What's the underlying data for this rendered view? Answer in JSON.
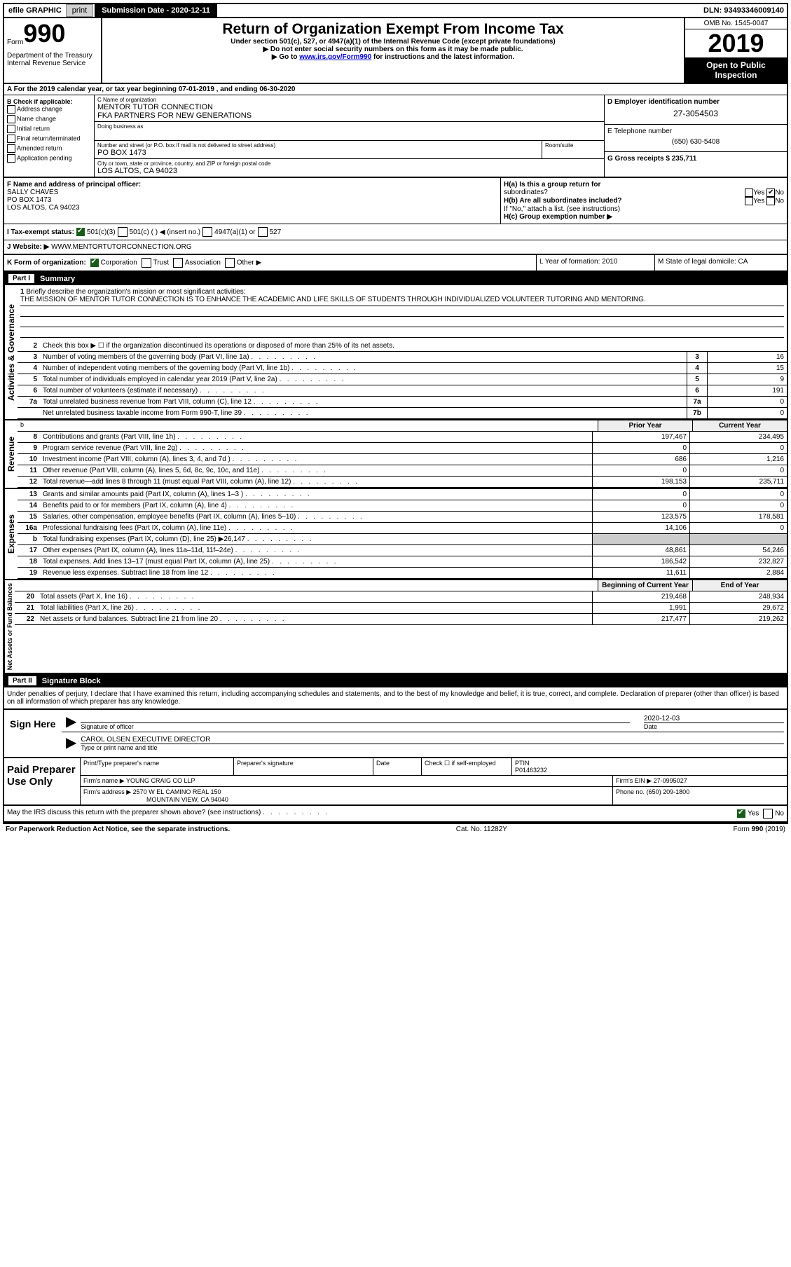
{
  "topbar": {
    "efile_label": "efile GRAPHIC",
    "print_btn": "print",
    "sub_date_label": "Submission Date - 2020-12-11",
    "dln": "DLN: 93493346009140"
  },
  "header": {
    "form_word": "Form",
    "form_num": "990",
    "dept": "Department of the Treasury\nInternal Revenue Service",
    "main_title": "Return of Organization Exempt From Income Tax",
    "sub1": "Under section 501(c), 527, or 4947(a)(1) of the Internal Revenue Code (except private foundations)",
    "sub2": "▶ Do not enter social security numbers on this form as it may be made public.",
    "sub3_pre": "▶ Go to ",
    "sub3_link": "www.irs.gov/Form990",
    "sub3_post": " for instructions and the latest information.",
    "omb": "OMB No. 1545-0047",
    "year": "2019",
    "open_pub": "Open to Public Inspection"
  },
  "row_a": "A For the 2019 calendar year, or tax year beginning 07-01-2019    , and ending 06-30-2020",
  "col_b": {
    "header": "B Check if applicable:",
    "items": [
      "Address change",
      "Name change",
      "Initial return",
      "Final return/terminated",
      "Amended return",
      "Application pending"
    ]
  },
  "col_c": {
    "name_label": "C Name of organization",
    "name": "MENTOR TUTOR CONNECTION",
    "fka": "FKA PARTNERS FOR NEW GENERATIONS",
    "dba_label": "Doing business as",
    "addr_label": "Number and street (or P.O. box if mail is not delivered to street address)",
    "addr": "PO BOX 1473",
    "suite_label": "Room/suite",
    "city_label": "City or town, state or province, country, and ZIP or foreign postal code",
    "city": "LOS ALTOS, CA  94023"
  },
  "col_d": {
    "ein_label": "D Employer identification number",
    "ein": "27-3054503",
    "phone_label": "E Telephone number",
    "phone": "(650) 630-5408",
    "gross_label": "G Gross receipts $ 235,711"
  },
  "f_section": {
    "f_label": "F  Name and address of principal officer:",
    "officer": "SALLY CHAVES\nPO BOX 1473\nLOS ALTOS, CA  94023",
    "ha": "H(a)  Is this a group return for",
    "ha2": "subordinates?",
    "hb": "H(b)  Are all subordinates included?",
    "hb_note": "If \"No,\" attach a list. (see instructions)",
    "hc": "H(c)  Group exemption number ▶",
    "yes": "Yes",
    "no": "No"
  },
  "tax_status": {
    "label": "I    Tax-exempt status:",
    "s1": "501(c)(3)",
    "s2": "501(c) (  ) ◀ (insert no.)",
    "s3": "4947(a)(1) or",
    "s4": "527"
  },
  "website": {
    "label": "J   Website: ▶",
    "value": "WWW.MENTORTUTORCONNECTION.ORG"
  },
  "klm": {
    "k": "K Form of organization:",
    "k_corp": "Corporation",
    "k_trust": "Trust",
    "k_assoc": "Association",
    "k_other": "Other ▶",
    "l": "L Year of formation: 2010",
    "m": "M State of legal domicile: CA"
  },
  "part1": {
    "label": "Part I",
    "title": "Summary"
  },
  "governance": {
    "vert": "Activities & Governance",
    "line1": "Briefly describe the organization's mission or most significant activities:",
    "mission": "THE MISSION OF MENTOR TUTOR CONNECTION IS TO ENHANCE THE ACADEMIC AND LIFE SKILLS OF STUDENTS THROUGH INDIVIDUALIZED VOLUNTEER TUTORING AND MENTORING.",
    "line2": "Check this box ▶ ☐  if the organization discontinued its operations or disposed of more than 25% of its net assets.",
    "lines": [
      {
        "n": "3",
        "t": "Number of voting members of the governing body (Part VI, line 1a)",
        "box": "3",
        "v": "16"
      },
      {
        "n": "4",
        "t": "Number of independent voting members of the governing body (Part VI, line 1b)",
        "box": "4",
        "v": "15"
      },
      {
        "n": "5",
        "t": "Total number of individuals employed in calendar year 2019 (Part V, line 2a)",
        "box": "5",
        "v": "9"
      },
      {
        "n": "6",
        "t": "Total number of volunteers (estimate if necessary)",
        "box": "6",
        "v": "191"
      },
      {
        "n": "7a",
        "t": "Total unrelated business revenue from Part VIII, column (C), line 12",
        "box": "7a",
        "v": "0"
      },
      {
        "n": "",
        "t": "Net unrelated business taxable income from Form 990-T, line 39",
        "box": "7b",
        "v": "0"
      }
    ]
  },
  "revenue": {
    "vert": "Revenue",
    "header_prior": "Prior Year",
    "header_current": "Current Year",
    "lines": [
      {
        "n": "8",
        "t": "Contributions and grants (Part VIII, line 1h)",
        "p": "197,467",
        "c": "234,495"
      },
      {
        "n": "9",
        "t": "Program service revenue (Part VIII, line 2g)",
        "p": "0",
        "c": "0"
      },
      {
        "n": "10",
        "t": "Investment income (Part VIII, column (A), lines 3, 4, and 7d )",
        "p": "686",
        "c": "1,216"
      },
      {
        "n": "11",
        "t": "Other revenue (Part VIII, column (A), lines 5, 6d, 8c, 9c, 10c, and 11e)",
        "p": "0",
        "c": "0"
      },
      {
        "n": "12",
        "t": "Total revenue—add lines 8 through 11 (must equal Part VIII, column (A), line 12)",
        "p": "198,153",
        "c": "235,711"
      }
    ]
  },
  "expenses": {
    "vert": "Expenses",
    "lines": [
      {
        "n": "13",
        "t": "Grants and similar amounts paid (Part IX, column (A), lines 1–3 )",
        "p": "0",
        "c": "0"
      },
      {
        "n": "14",
        "t": "Benefits paid to or for members (Part IX, column (A), line 4)",
        "p": "0",
        "c": "0"
      },
      {
        "n": "15",
        "t": "Salaries, other compensation, employee benefits (Part IX, column (A), lines 5–10)",
        "p": "123,575",
        "c": "178,581"
      },
      {
        "n": "16a",
        "t": "Professional fundraising fees (Part IX, column (A), line 11e)",
        "p": "14,106",
        "c": "0"
      },
      {
        "n": "b",
        "t": "Total fundraising expenses (Part IX, column (D), line 25) ▶26,147",
        "p": "shaded",
        "c": "shaded"
      },
      {
        "n": "17",
        "t": "Other expenses (Part IX, column (A), lines 11a–11d, 11f–24e)",
        "p": "48,861",
        "c": "54,246"
      },
      {
        "n": "18",
        "t": "Total expenses. Add lines 13–17 (must equal Part IX, column (A), line 25)",
        "p": "186,542",
        "c": "232,827"
      },
      {
        "n": "19",
        "t": "Revenue less expenses. Subtract line 18 from line 12",
        "p": "11,611",
        "c": "2,884"
      }
    ]
  },
  "netassets": {
    "vert": "Net Assets or Fund Balances",
    "header_begin": "Beginning of Current Year",
    "header_end": "End of Year",
    "lines": [
      {
        "n": "20",
        "t": "Total assets (Part X, line 16)",
        "p": "219,468",
        "c": "248,934"
      },
      {
        "n": "21",
        "t": "Total liabilities (Part X, line 26)",
        "p": "1,991",
        "c": "29,672"
      },
      {
        "n": "22",
        "t": "Net assets or fund balances. Subtract line 21 from line 20",
        "p": "217,477",
        "c": "219,262"
      }
    ]
  },
  "part2": {
    "label": "Part II",
    "title": "Signature Block"
  },
  "sig": {
    "penalty": "Under penalties of perjury, I declare that I have examined this return, including accompanying schedules and statements, and to the best of my knowledge and belief, it is true, correct, and complete. Declaration of preparer (other than officer) is based on all information of which preparer has any knowledge.",
    "sign_here": "Sign Here",
    "sig_officer_label": "Signature of officer",
    "date_label": "Date",
    "date": "2020-12-03",
    "name_title": "CAROL OLSEN  EXECUTIVE DIRECTOR",
    "name_title_label": "Type or print name and title"
  },
  "preparer": {
    "label": "Paid Preparer Use Only",
    "print_name_label": "Print/Type preparer's name",
    "sig_label": "Preparer's signature",
    "date_label": "Date",
    "check_label": "Check ☐ if self-employed",
    "ptin_label": "PTIN",
    "ptin": "P01463232",
    "firm_name_label": "Firm's name     ▶",
    "firm_name": "YOUNG CRAIG CO LLP",
    "firm_ein_label": "Firm's EIN ▶",
    "firm_ein": "27-0995027",
    "firm_addr_label": "Firm's address ▶",
    "firm_addr": "2570 W EL CAMINO REAL 150",
    "firm_city": "MOUNTAIN VIEW, CA  94040",
    "phone_label": "Phone no.",
    "phone": "(650) 209-1800"
  },
  "discuss": {
    "text": "May the IRS discuss this return with the preparer shown above? (see instructions)",
    "yes": "Yes",
    "no": "No"
  },
  "footer": {
    "left": "For Paperwork Reduction Act Notice, see the separate instructions.",
    "center": "Cat. No. 11282Y",
    "right": "Form 990 (2019)"
  }
}
